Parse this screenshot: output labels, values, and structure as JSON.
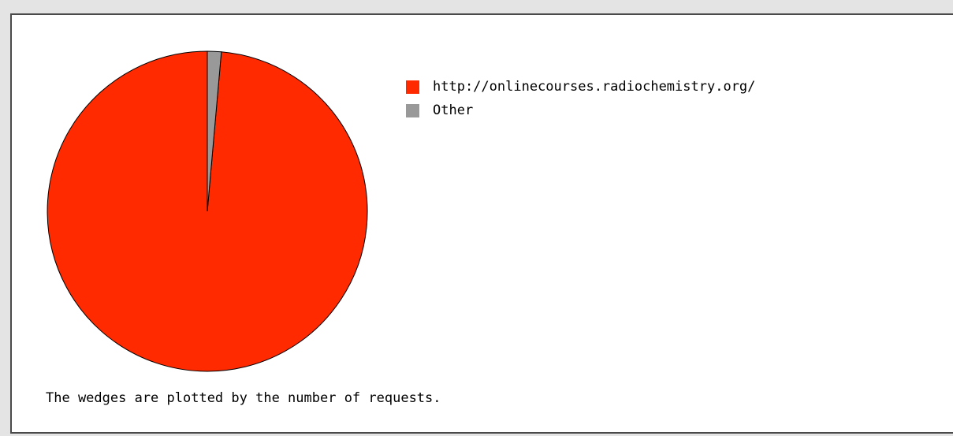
{
  "chart_data": {
    "type": "pie",
    "title": "",
    "slices": [
      {
        "label": "http://onlinecourses.radiochemistry.org/",
        "value": 98.6,
        "color": "#ff2a00"
      },
      {
        "label": "Other",
        "value": 1.4,
        "color": "#999999"
      }
    ],
    "start": "top",
    "direction": "counter-clockwise",
    "legend_position": "right",
    "caption": "The wedges are plotted by the number of requests."
  }
}
